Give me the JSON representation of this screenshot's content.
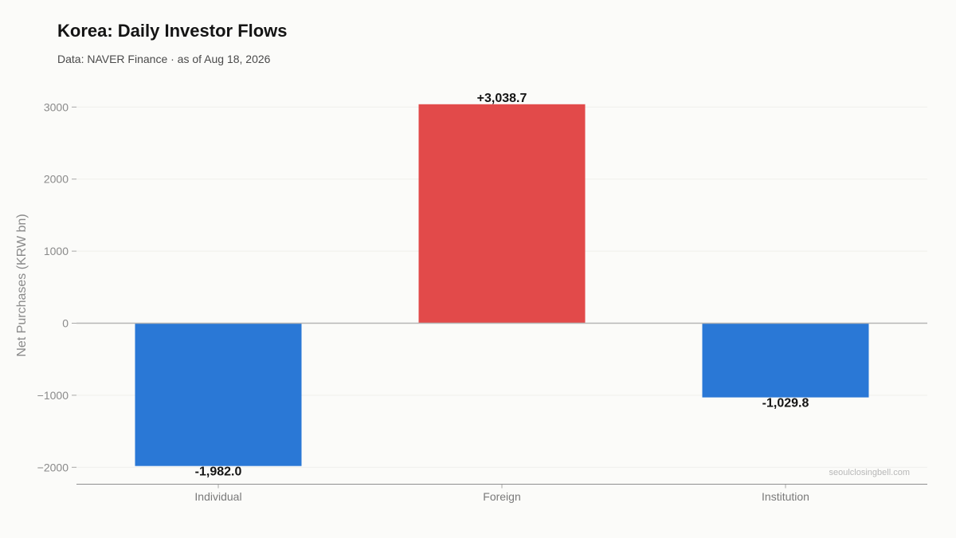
{
  "header": {
    "title": "Korea: Daily Investor Flows",
    "subtitle": "Data: NAVER Finance · as of Aug 18, 2026"
  },
  "watermark": "seoulclosingbell.com",
  "colors": {
    "positive": "#e24a4a",
    "negative": "#2a78d6",
    "grid": "#efefec",
    "zero_line": "#b5b5b5",
    "axis_line": "#8f8f8f"
  },
  "chart_data": {
    "type": "bar",
    "title": "Korea: Daily Investor Flows",
    "subtitle": "Data: NAVER Finance · as of Aug 18, 2026",
    "xlabel": "",
    "ylabel": "Net Purchases (KRW bn)",
    "categories": [
      "Individual",
      "Foreign",
      "Institution"
    ],
    "values": [
      -1982.0,
      3038.7,
      -1029.8
    ],
    "data_labels": [
      "-1,982.0",
      "+3,038.7",
      "-1,029.8"
    ],
    "ylim": [
      -2220,
      3200
    ],
    "yticks": [
      3000,
      2000,
      1000,
      0,
      -1000,
      -2000
    ],
    "ytick_labels": [
      "3000",
      "2000",
      "1000",
      "0",
      "−1000",
      "−2000"
    ],
    "grid": true,
    "legend": "none"
  }
}
